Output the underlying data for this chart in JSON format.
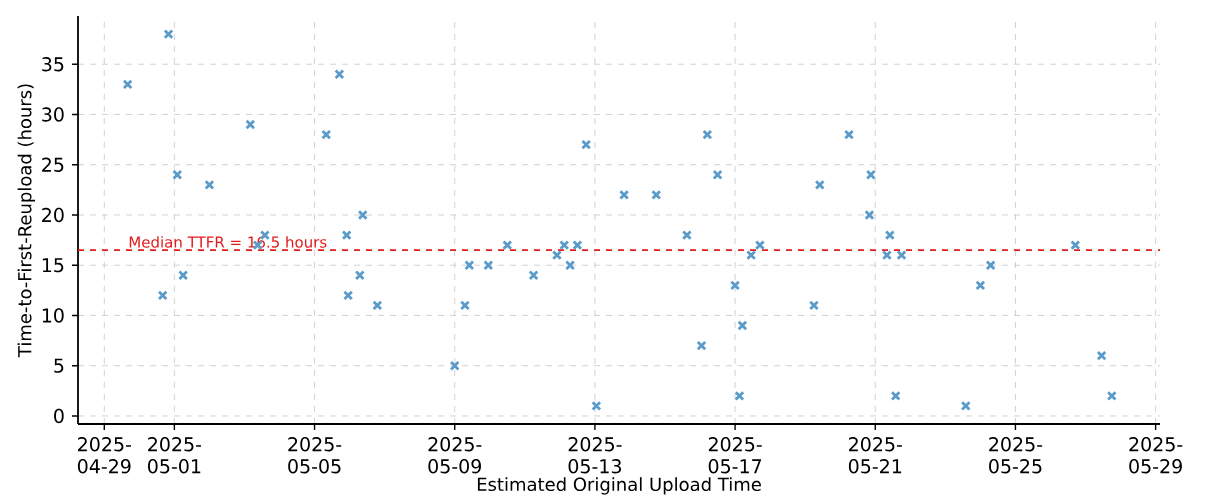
{
  "chart_data": {
    "type": "scatter",
    "xlabel": "Estimated Original Upload Time",
    "ylabel": "Time-to-First-Reupload (hours)",
    "x": [
      "2025-04-29T16:00",
      "2025-04-30T16:00",
      "2025-04-30T20:00",
      "2025-05-01T02:00",
      "2025-05-01T06:00",
      "2025-05-02T00:00",
      "2025-05-03T04:00",
      "2025-05-03T09:00",
      "2025-05-03T14:00",
      "2025-05-05T08:00",
      "2025-05-05T17:00",
      "2025-05-05T22:00",
      "2025-05-05T23:00",
      "2025-05-06T07:00",
      "2025-05-06T09:00",
      "2025-05-06T19:00",
      "2025-05-09T00:00",
      "2025-05-09T07:00",
      "2025-05-09T10:00",
      "2025-05-09T23:00",
      "2025-05-10T12:00",
      "2025-05-11T06:00",
      "2025-05-11T22:00",
      "2025-05-12T03:00",
      "2025-05-12T07:00",
      "2025-05-12T12:00",
      "2025-05-12T18:00",
      "2025-05-13T01:00",
      "2025-05-13T20:00",
      "2025-05-14T18:00",
      "2025-05-15T15:00",
      "2025-05-16T01:00",
      "2025-05-16T05:00",
      "2025-05-16T12:00",
      "2025-05-17T00:00",
      "2025-05-17T03:00",
      "2025-05-17T05:00",
      "2025-05-17T11:00",
      "2025-05-17T17:00",
      "2025-05-19T06:00",
      "2025-05-19T10:00",
      "2025-05-20T06:00",
      "2025-05-20T20:00",
      "2025-05-20T21:00",
      "2025-05-21T08:00",
      "2025-05-21T10:00",
      "2025-05-21T14:00",
      "2025-05-21T18:00",
      "2025-05-23T14:00",
      "2025-05-24T00:00",
      "2025-05-24T07:00",
      "2025-05-26T17:00",
      "2025-05-27T11:00",
      "2025-05-27T18:00"
    ],
    "values": [
      33,
      12,
      38,
      24,
      14,
      23,
      29,
      17,
      18,
      28,
      34,
      18,
      12,
      14,
      20,
      11,
      5,
      11,
      15,
      15,
      17,
      14,
      16,
      17,
      15,
      17,
      27,
      1,
      22,
      22,
      18,
      7,
      28,
      24,
      13,
      2,
      9,
      16,
      17,
      11,
      23,
      28,
      20,
      24,
      16,
      18,
      2,
      16,
      1,
      13,
      15,
      17,
      6,
      2
    ],
    "color": "#5b9bc9",
    "marker": "cross",
    "grid": true,
    "xlim": [
      "2025-04-28T06:00",
      "2025-05-29T03:00"
    ],
    "xticks": [
      "2025-04-29",
      "2025-05-01",
      "2025-05-05",
      "2025-05-09",
      "2025-05-13",
      "2025-05-17",
      "2025-05-21",
      "2025-05-25",
      "2025-05-29"
    ],
    "ylim": [
      -0.8,
      39.8
    ],
    "yticks": [
      0,
      5,
      10,
      15,
      20,
      25,
      30,
      35
    ],
    "ref_lines": [
      {
        "axis": "y",
        "value": 16.5,
        "label": "Median TTFR = 16.5 hours",
        "color": "#e31a1c",
        "line_style": "dashed"
      }
    ]
  }
}
